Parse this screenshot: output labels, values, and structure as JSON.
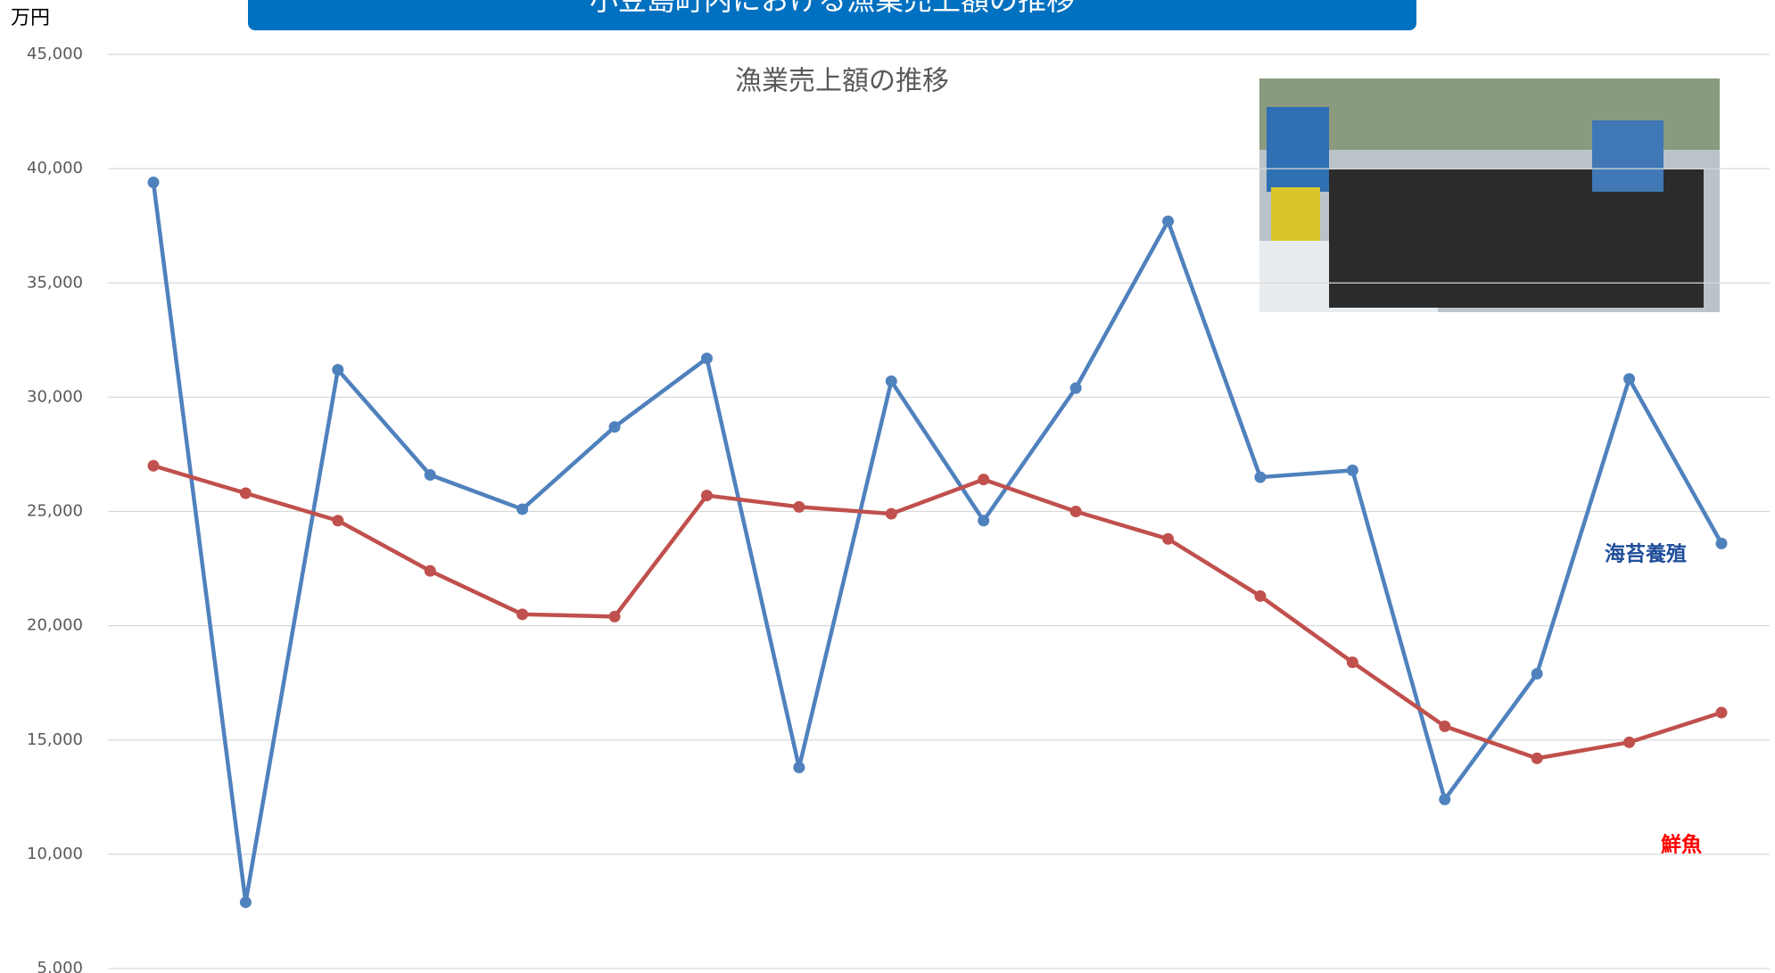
{
  "banner": "小豆島町内における漁業売上額の推移",
  "chart_data": {
    "type": "line",
    "title": "漁業売上額の推移",
    "y_unit": "万円",
    "categories": [
      null,
      null,
      null,
      null,
      null,
      null,
      null,
      null,
      null,
      null,
      null,
      null,
      null,
      null,
      null,
      null,
      null,
      null
    ],
    "series": [
      {
        "name": "海苔養殖",
        "color": "#4f81bd",
        "values": [
          39400,
          7900,
          31200,
          26600,
          25100,
          28700,
          31700,
          13800,
          30700,
          24600,
          30400,
          37700,
          26500,
          26800,
          12400,
          17900,
          30800,
          23600
        ]
      },
      {
        "name": "鮮魚",
        "color": "#c0504d",
        "values": [
          27000,
          25800,
          24600,
          22400,
          20500,
          20400,
          25700,
          25200,
          24900,
          26400,
          25000,
          23800,
          21300,
          18400,
          15600,
          14200,
          14900,
          16200
        ]
      }
    ],
    "ylim": [
      5000,
      45000
    ],
    "yticks": [
      {
        "value": 5000,
        "label": "5,000"
      },
      {
        "value": 10000,
        "label": "10,000"
      },
      {
        "value": 15000,
        "label": "15,000"
      },
      {
        "value": 20000,
        "label": "20,000"
      },
      {
        "value": 25000,
        "label": "25,000"
      },
      {
        "value": 30000,
        "label": "30,000"
      },
      {
        "value": 35000,
        "label": "35,000"
      },
      {
        "value": 40000,
        "label": "40,000"
      },
      {
        "value": 45000,
        "label": "45,000"
      }
    ],
    "grid": true
  }
}
